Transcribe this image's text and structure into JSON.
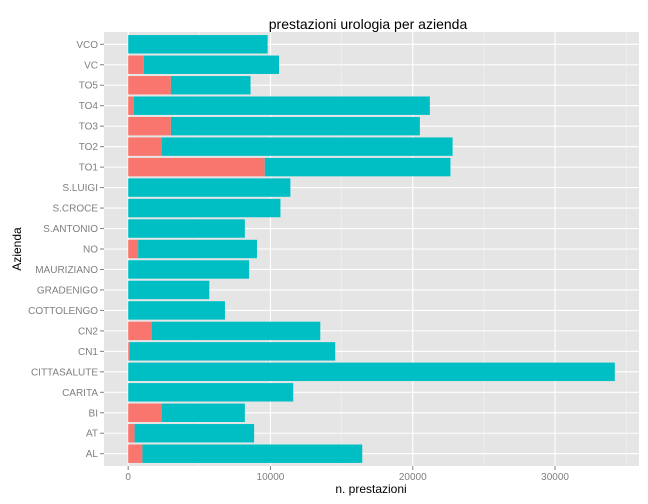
{
  "chart_data": {
    "type": "bar",
    "orientation": "horizontal",
    "stacked": true,
    "title": "prestazioni urologia per azienda",
    "xlabel": "n. prestazioni",
    "ylabel": "Azienda",
    "xlim": [
      -1700,
      35900
    ],
    "xticks": [
      0,
      10000,
      20000,
      30000
    ],
    "xtick_labels": [
      "0",
      "10000",
      "20000",
      "30000"
    ],
    "grid": true,
    "legend": "none",
    "categories": [
      "AL",
      "AT",
      "BI",
      "CARITA",
      "CITTASALUTE",
      "CN1",
      "CN2",
      "COTTOLENGO",
      "GRADENIGO",
      "MAURIZIANO",
      "NO",
      "S.ANTONIO",
      "S.CROCE",
      "S.LUIGI",
      "TO1",
      "TO2",
      "TO3",
      "TO4",
      "TO5",
      "VC",
      "VCO"
    ],
    "series": [
      {
        "color": "#F8766D",
        "values": [
          1000,
          450,
          2350,
          0,
          0,
          100,
          1650,
          0,
          0,
          0,
          700,
          0,
          0,
          0,
          9600,
          2350,
          3000,
          400,
          3000,
          1100,
          0
        ]
      },
      {
        "color": "#00BFC4",
        "values": [
          15450,
          8400,
          5850,
          11600,
          34200,
          14450,
          11850,
          6800,
          5700,
          8500,
          8350,
          8200,
          10700,
          11400,
          13050,
          20450,
          17500,
          20800,
          5600,
          9500,
          9800
        ]
      }
    ]
  },
  "colors": {
    "panel_bg": "#E5E5E5",
    "grid_major": "#FFFFFF",
    "grid_minor": "#F2F2F2"
  }
}
